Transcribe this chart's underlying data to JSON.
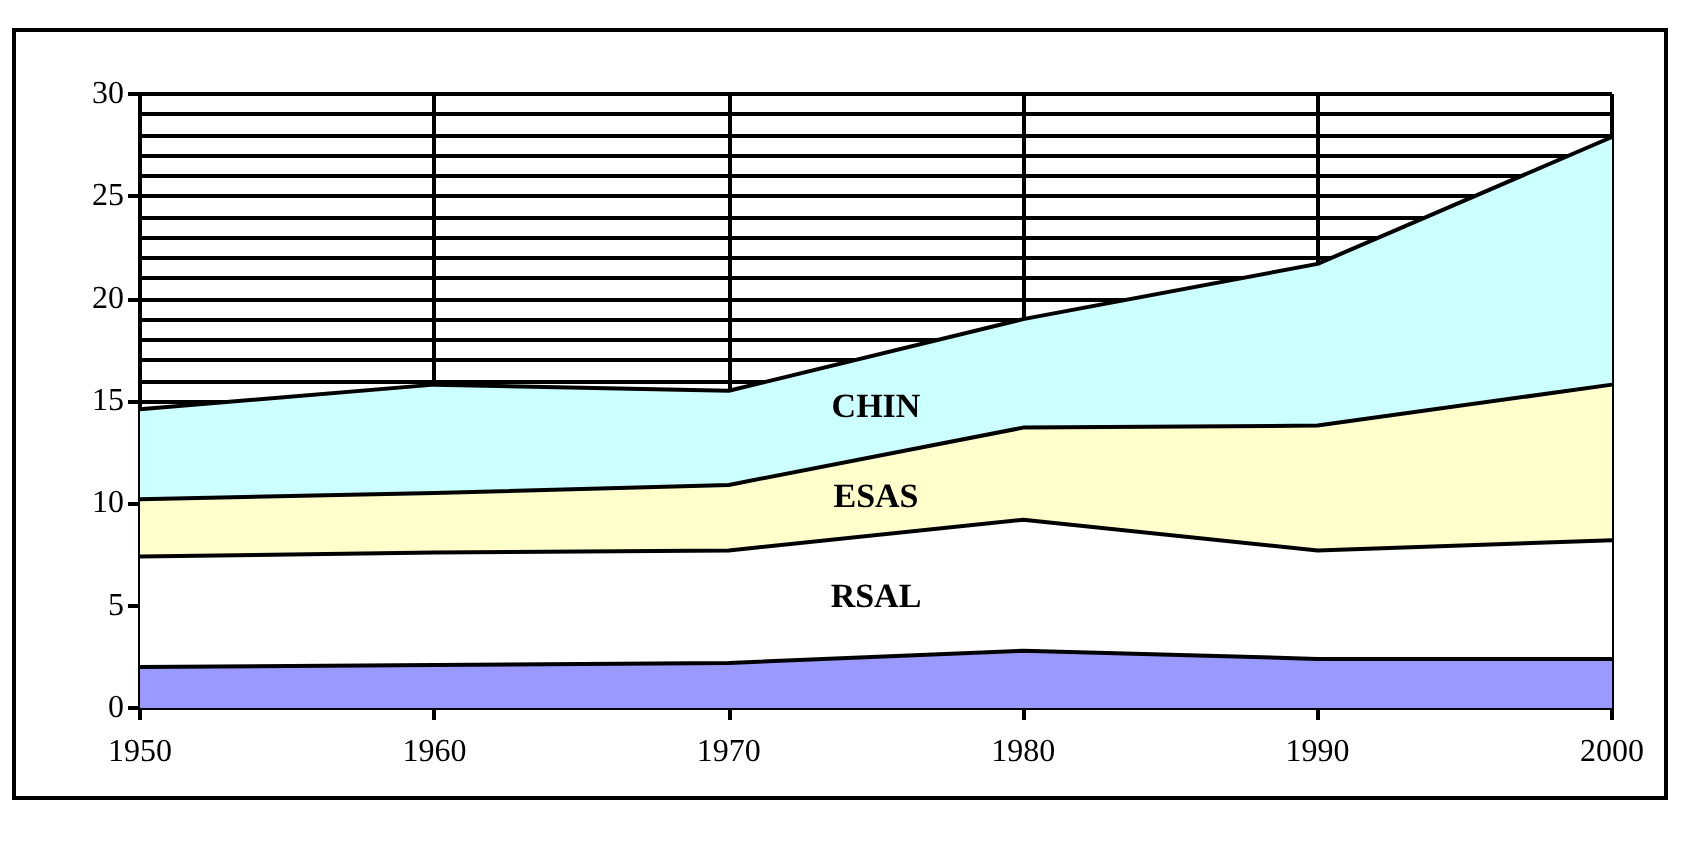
{
  "chart_data": {
    "type": "area",
    "stacked": true,
    "x": [
      1950,
      1960,
      1970,
      1980,
      1990,
      2000
    ],
    "series": [
      {
        "color": "#9999ff",
        "values": [
          2.0,
          2.1,
          2.2,
          2.8,
          2.4,
          2.4
        ]
      },
      {
        "name": "RSAL",
        "color": "#ffffff",
        "values": [
          5.4,
          5.5,
          5.5,
          6.4,
          5.3,
          5.8
        ]
      },
      {
        "name": "ESAS",
        "color": "#ffffcc",
        "values": [
          2.8,
          2.9,
          3.2,
          4.5,
          6.1,
          7.6
        ]
      },
      {
        "name": "CHIN",
        "color": "#ccffff",
        "values": [
          4.4,
          5.3,
          4.6,
          5.3,
          7.9,
          12.1
        ]
      }
    ],
    "xlim": [
      1950,
      2000
    ],
    "xticks": [
      1950,
      1960,
      1970,
      1980,
      1990,
      2000
    ],
    "ylim": [
      0,
      30
    ],
    "yticks": [
      0,
      5,
      10,
      15,
      20,
      25,
      30
    ],
    "grid": true,
    "legend": false,
    "marker": "none",
    "line_style": "solid"
  }
}
